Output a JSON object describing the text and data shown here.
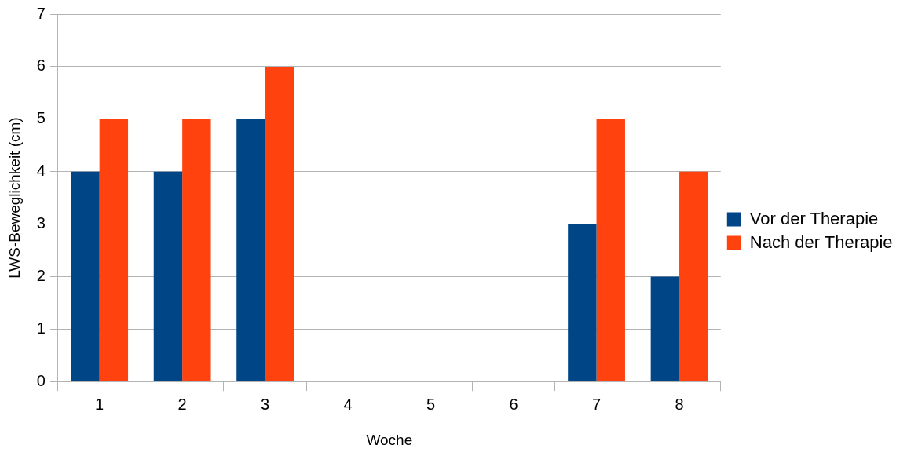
{
  "chart_data": {
    "type": "bar",
    "xlabel": "Woche",
    "ylabel": "LWS-Beweglichkeit (cm)",
    "categories": [
      "1",
      "2",
      "3",
      "4",
      "5",
      "6",
      "7",
      "8"
    ],
    "series": [
      {
        "name": "Vor der Therapie",
        "color": "#004586",
        "values": [
          4,
          4,
          5,
          null,
          null,
          null,
          3,
          2
        ]
      },
      {
        "name": "Nach der Therapie",
        "color": "#ff420e",
        "values": [
          5,
          5,
          6,
          null,
          null,
          null,
          5,
          4
        ]
      }
    ],
    "ylim": [
      0,
      7
    ],
    "yticks": [
      0,
      1,
      2,
      3,
      4,
      5,
      6,
      7
    ],
    "grid": "y",
    "legend": "right"
  }
}
